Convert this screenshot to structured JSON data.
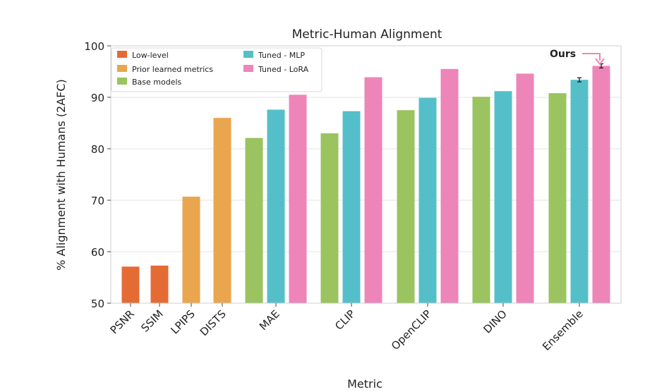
{
  "chart_data": {
    "type": "bar",
    "title": "Metric-Human Alignment",
    "xlabel": "Metric",
    "ylabel": "% Alignment with Humans (2AFC)",
    "ylim": [
      50,
      100
    ],
    "yticks": [
      50,
      60,
      70,
      80,
      90,
      100
    ],
    "grid": "horizontal",
    "legend_position": "top-left",
    "categories": [
      "PSNR",
      "SSIM",
      "LPIPS",
      "DISTS",
      "MAE",
      "CLIP",
      "OpenCLIP",
      "DINO",
      "Ensemble"
    ],
    "legend": [
      {
        "key": "low",
        "label": "Low-level",
        "color": "#e56b34"
      },
      {
        "key": "prior",
        "label": "Prior learned metrics",
        "color": "#e9a64e"
      },
      {
        "key": "base",
        "label": "Base models",
        "color": "#9bc35f"
      },
      {
        "key": "mlp",
        "label": "Tuned - MLP",
        "color": "#55bfc9"
      },
      {
        "key": "lora",
        "label": "Tuned - LoRA",
        "color": "#ed85b9"
      }
    ],
    "bars": [
      {
        "category": "PSNR",
        "series": "low",
        "value": 57.1
      },
      {
        "category": "SSIM",
        "series": "low",
        "value": 57.3
      },
      {
        "category": "LPIPS",
        "series": "prior",
        "value": 70.7
      },
      {
        "category": "DISTS",
        "series": "prior",
        "value": 86.0
      },
      {
        "category": "MAE",
        "series": "base",
        "value": 82.1
      },
      {
        "category": "MAE",
        "series": "mlp",
        "value": 87.6
      },
      {
        "category": "MAE",
        "series": "lora",
        "value": 90.5
      },
      {
        "category": "CLIP",
        "series": "base",
        "value": 83.0
      },
      {
        "category": "CLIP",
        "series": "mlp",
        "value": 87.3
      },
      {
        "category": "CLIP",
        "series": "lora",
        "value": 93.9
      },
      {
        "category": "OpenCLIP",
        "series": "base",
        "value": 87.5
      },
      {
        "category": "OpenCLIP",
        "series": "mlp",
        "value": 89.9
      },
      {
        "category": "OpenCLIP",
        "series": "lora",
        "value": 95.5
      },
      {
        "category": "DINO",
        "series": "base",
        "value": 90.1
      },
      {
        "category": "DINO",
        "series": "mlp",
        "value": 91.2
      },
      {
        "category": "DINO",
        "series": "lora",
        "value": 94.6
      },
      {
        "category": "Ensemble",
        "series": "base",
        "value": 90.8
      },
      {
        "category": "Ensemble",
        "series": "mlp",
        "value": 93.4,
        "error": 0.4
      },
      {
        "category": "Ensemble",
        "series": "lora",
        "value": 96.1,
        "error": 0.4
      }
    ],
    "annotation": {
      "text": "Ours",
      "color": "#ed85b9",
      "points_to": "Ensemble Tuned - LoRA"
    }
  }
}
